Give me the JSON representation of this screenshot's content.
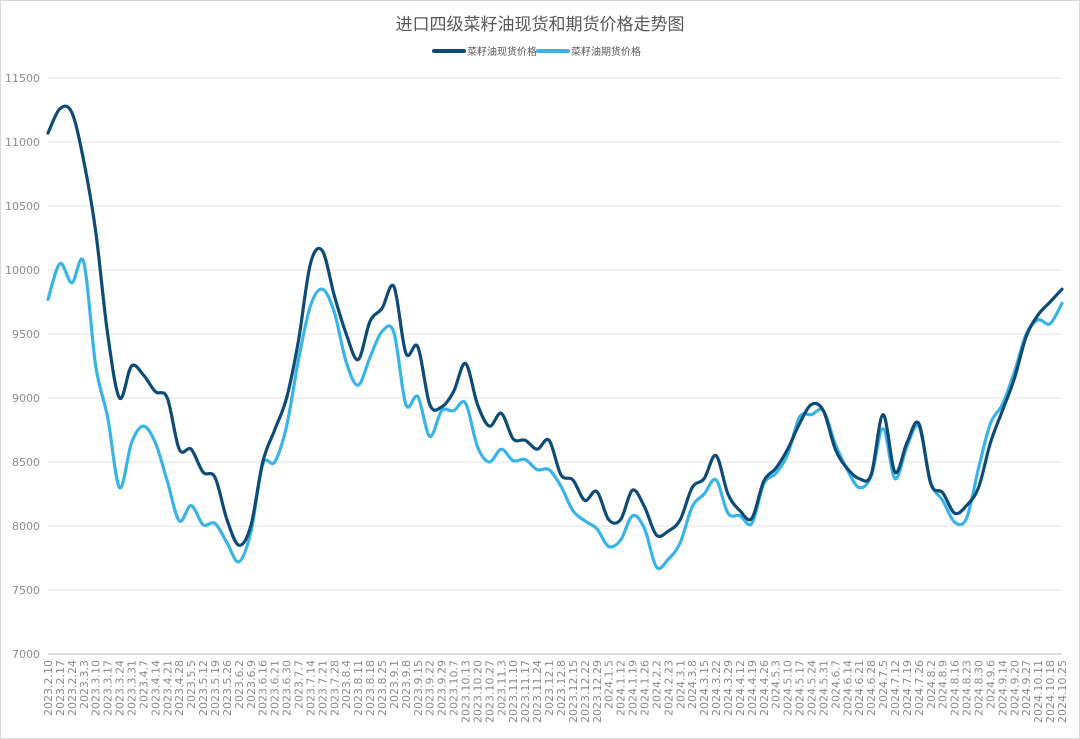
{
  "title": "进口四级菜籽油现货和期货价格走势图",
  "colors": {
    "spot": "#0f4c75",
    "futures": "#3ab4e6",
    "grid": "#e3e3e3",
    "axis": "#bfbfbf"
  },
  "chart_data": {
    "type": "line",
    "title": "进口四级菜籽油现货和期货价格走势图",
    "xlabel": "",
    "ylabel": "",
    "ylim": [
      7000,
      11500
    ],
    "y_ticks": [
      7000,
      7500,
      8000,
      8500,
      9000,
      9500,
      10000,
      10500,
      11000,
      11500
    ],
    "x_tick_labels": [
      "2023.2.10",
      "2023.2.17",
      "2023.2.24",
      "2023.3.3",
      "2023.3.10",
      "2023.3.17",
      "2023.3.24",
      "2023.3.31",
      "2023.4.7",
      "2023.4.14",
      "2023.4.21",
      "2023.4.28",
      "2023.5.5",
      "2023.5.12",
      "2023.5.19",
      "2023.5.26",
      "2023.6.2",
      "2023.6.9",
      "2023.6.16",
      "2023.6.21",
      "2023.6.30",
      "2023.7.7",
      "2023.7.14",
      "2023.7.21",
      "2023.7.28",
      "2023.8.4",
      "2023.8.11",
      "2023.8.18",
      "2023.8.25",
      "2023.9.1",
      "2023.9.8",
      "2023.9.15",
      "2023.9.22",
      "2023.9.29",
      "2023.10.7",
      "2023.10.13",
      "2023.10.20",
      "2023.10.27",
      "2023.11.3",
      "2023.11.10",
      "2023.11.17",
      "2023.11.24",
      "2023.12.1",
      "2023.12.8",
      "2023.12.15",
      "2023.12.22",
      "2023.12.29",
      "2024.1.5",
      "2024.1.12",
      "2024.1.19",
      "2024.1.26",
      "2024.2.2",
      "2024.2.23",
      "2024.3.1",
      "2024.3.8",
      "2024.3.15",
      "2024.3.22",
      "2024.3.29",
      "2024.4.12",
      "2024.4.19",
      "2024.4.26",
      "2024.5.3",
      "2024.5.10",
      "2024.5.17",
      "2024.5.24",
      "2024.5.31",
      "2024.6.7",
      "2024.6.14",
      "2024.6.21",
      "2024.6.28",
      "2024.7.5",
      "2024.7.12",
      "2024.7.19",
      "2024.7.26",
      "2024.8.2",
      "2024.8.9",
      "2024.8.16",
      "2024.8.23",
      "2024.8.30",
      "2024.9.6",
      "2024.9.14",
      "2024.9.20",
      "2024.9.27",
      "2024.10.11",
      "2024.10.18",
      "2024.10.25"
    ],
    "series": [
      {
        "name": "菜籽油现货价格",
        "color": "#0f4c75",
        "values": [
          11070,
          11260,
          11230,
          10850,
          10300,
          9500,
          9000,
          9250,
          9180,
          9050,
          9000,
          8600,
          8600,
          8420,
          8380,
          8050,
          7850,
          8000,
          8500,
          8750,
          9000,
          9450,
          10050,
          10150,
          9800,
          9500,
          9300,
          9600,
          9700,
          9870,
          9350,
          9400,
          8950,
          8930,
          9050,
          9270,
          8950,
          8780,
          8880,
          8680,
          8670,
          8600,
          8670,
          8400,
          8360,
          8200,
          8270,
          8050,
          8050,
          8280,
          8150,
          7930,
          7960,
          8050,
          8300,
          8370,
          8550,
          8250,
          8120,
          8060,
          8350,
          8450,
          8600,
          8800,
          8950,
          8900,
          8600,
          8450,
          8370,
          8400,
          8870,
          8420,
          8650,
          8800,
          8330,
          8260,
          8100,
          8160,
          8300,
          8650,
          8900,
          9150,
          9480,
          9650,
          9750,
          9850
        ]
      },
      {
        "name": "菜籽油期货价格",
        "color": "#3ab4e6",
        "values": [
          9770,
          10050,
          9900,
          10060,
          9250,
          8850,
          8300,
          8650,
          8780,
          8650,
          8350,
          8040,
          8160,
          8010,
          8020,
          7870,
          7720,
          7950,
          8480,
          8500,
          8780,
          9300,
          9720,
          9850,
          9670,
          9280,
          9100,
          9320,
          9520,
          9510,
          8950,
          9010,
          8700,
          8900,
          8900,
          8960,
          8620,
          8500,
          8600,
          8510,
          8520,
          8440,
          8440,
          8310,
          8120,
          8040,
          7980,
          7840,
          7890,
          8080,
          7980,
          7680,
          7740,
          7870,
          8150,
          8250,
          8360,
          8100,
          8080,
          8020,
          8330,
          8410,
          8560,
          8850,
          8870,
          8900,
          8640,
          8440,
          8300,
          8390,
          8760,
          8370,
          8620,
          8780,
          8340,
          8200,
          8030,
          8060,
          8450,
          8800,
          8950,
          9200,
          9500,
          9610,
          9580,
          9740
        ]
      }
    ],
    "legend_position": "top-center",
    "grid": true
  }
}
